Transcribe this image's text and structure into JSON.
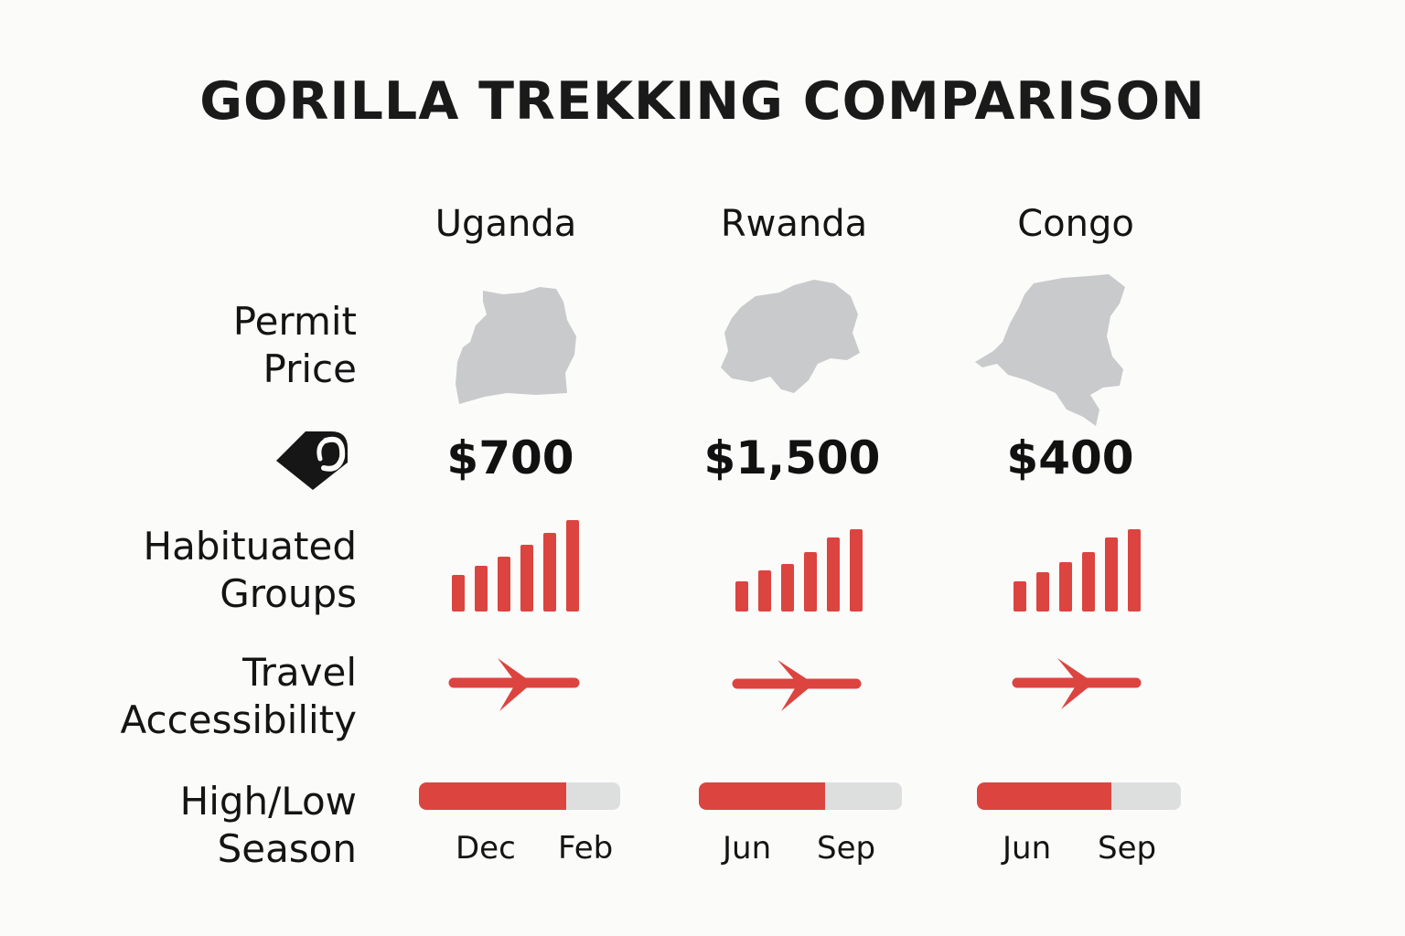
{
  "title": "GORILLA TREKKING COMPARISON",
  "row_labels": {
    "permit_price": [
      "Permit",
      "Price"
    ],
    "habituated_groups": [
      "Habituated",
      "Groups"
    ],
    "travel_accessibility": [
      "Travel",
      "Accessibility"
    ],
    "season": [
      "High/Low",
      "Season"
    ]
  },
  "icons": {
    "price": "price-tag-icon",
    "groups": "bar-chart-icon",
    "travel": "airplane-icon",
    "map": "country-map-icon"
  },
  "colors": {
    "accent": "#dc4440",
    "map_gray": "#c9cacb",
    "track_gray": "#dddfdf"
  },
  "countries": [
    {
      "name": "Uganda",
      "price": "$700",
      "groups_bars": [
        0.4,
        0.5,
        0.6,
        0.73,
        0.86,
        1.0
      ],
      "season_fill": 0.73,
      "season_start": "Dec",
      "season_end": "Feb"
    },
    {
      "name": "Rwanda",
      "price": "$1,500",
      "groups_bars": [
        0.37,
        0.5,
        0.58,
        0.72,
        0.9,
        1.0
      ],
      "season_fill": 0.62,
      "season_start": "Jun",
      "season_end": "Sep"
    },
    {
      "name": "Congo",
      "price": "$400",
      "groups_bars": [
        0.37,
        0.48,
        0.6,
        0.72,
        0.9,
        1.0
      ],
      "season_fill": 0.66,
      "season_start": "Jun",
      "season_end": "Sep"
    }
  ]
}
